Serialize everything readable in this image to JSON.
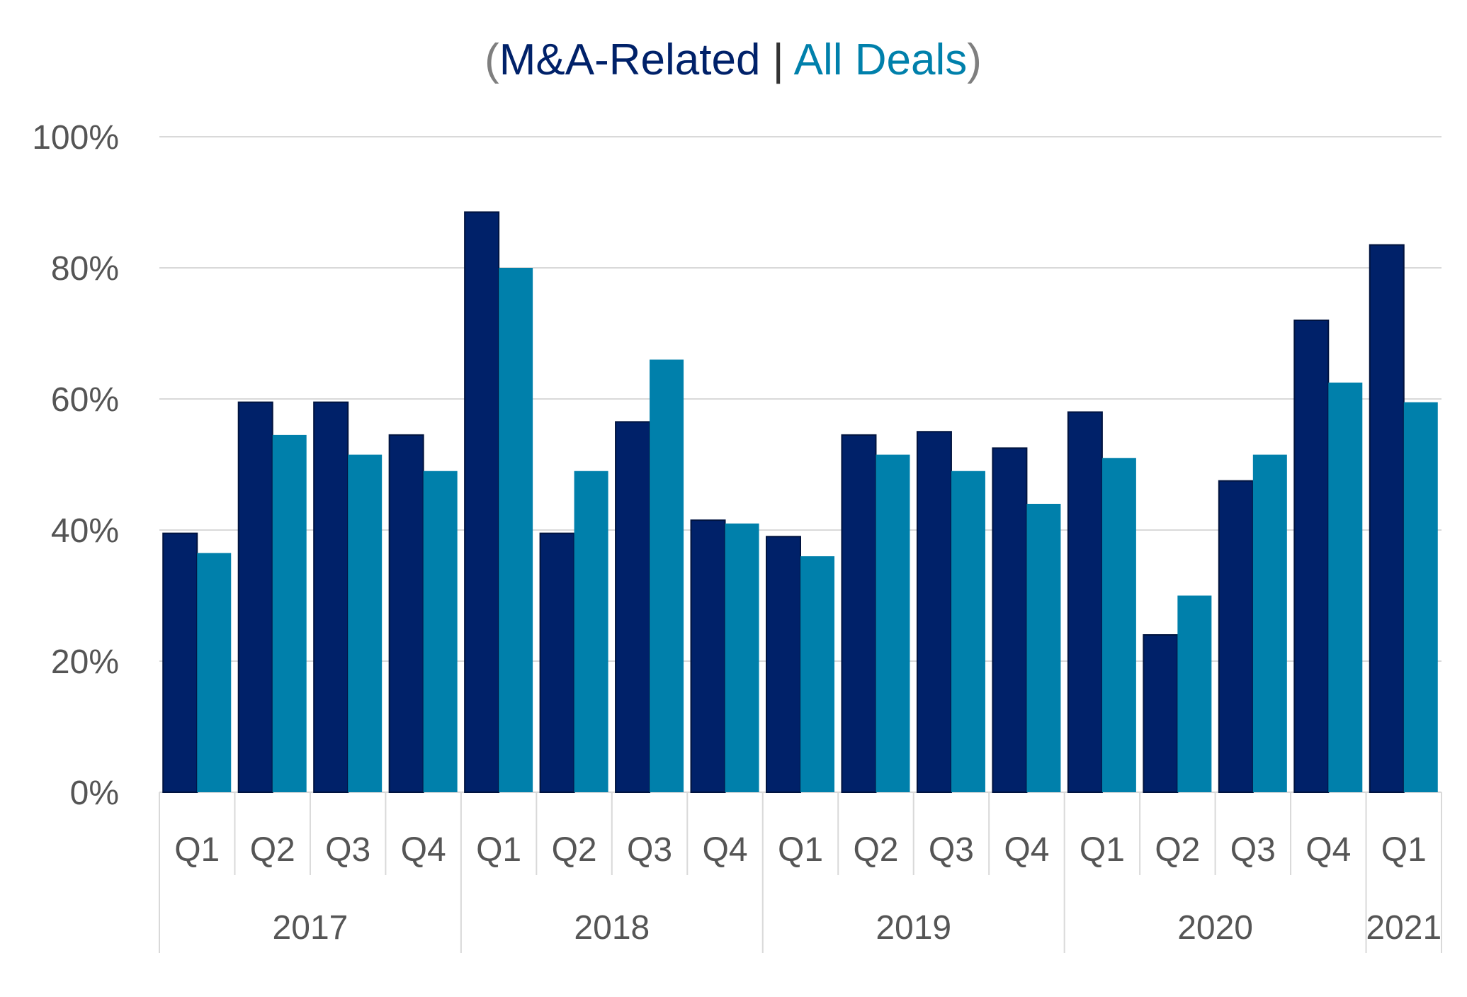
{
  "chart_data": {
    "type": "bar",
    "title": {
      "open": "(",
      "series_a": "M&A-Related",
      "sep": " | ",
      "series_b": "All Deals",
      "close": ")"
    },
    "categories": [
      "Q1",
      "Q2",
      "Q3",
      "Q4",
      "Q1",
      "Q2",
      "Q3",
      "Q4",
      "Q1",
      "Q2",
      "Q3",
      "Q4",
      "Q1",
      "Q2",
      "Q3",
      "Q4",
      "Q1"
    ],
    "year_groups": [
      {
        "label": "2017",
        "start": 0,
        "count": 4
      },
      {
        "label": "2018",
        "start": 4,
        "count": 4
      },
      {
        "label": "2019",
        "start": 8,
        "count": 4
      },
      {
        "label": "2020",
        "start": 12,
        "count": 4
      },
      {
        "label": "2021",
        "start": 16,
        "count": 1
      }
    ],
    "series": [
      {
        "name": "M&A-Related",
        "color": "#002169",
        "values": [
          39.5,
          59.5,
          59.5,
          54.5,
          88.5,
          39.5,
          56.5,
          41.5,
          39,
          54.5,
          55,
          52.5,
          58,
          24,
          47.5,
          72,
          83.5
        ]
      },
      {
        "name": "All Deals",
        "color": "#0080AB",
        "values": [
          36.5,
          54.5,
          51.5,
          49,
          80,
          49,
          66,
          41,
          36,
          51.5,
          49,
          44,
          51,
          30,
          51.5,
          62.5,
          59.5
        ]
      }
    ],
    "ylim": [
      0,
      100
    ],
    "yticks": [
      "0%",
      "20%",
      "40%",
      "60%",
      "80%",
      "100%"
    ],
    "colors": {
      "title_paren": "#7f7f7f",
      "title_sep": "#333333"
    },
    "grid": true
  }
}
